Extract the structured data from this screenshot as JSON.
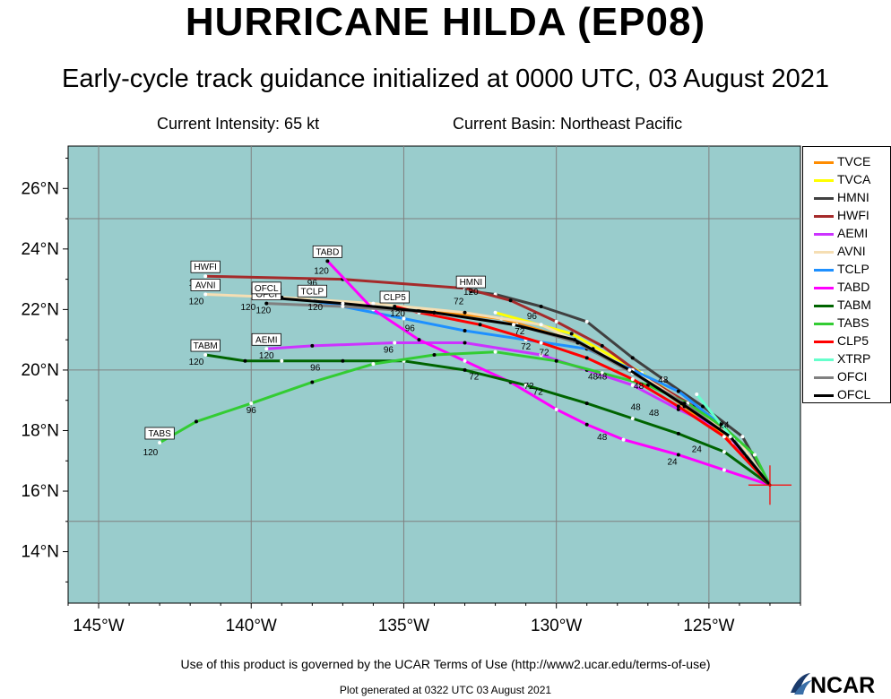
{
  "title": "HURRICANE HILDA (EP08)",
  "subtitle": "Early-cycle track guidance initialized at 0000 UTC, 03 August 2021",
  "current_intensity": "Current Intensity: 65 kt",
  "current_basin": "Current Basin: Northeast Pacific",
  "footer": "Use of this product is governed by the UCAR Terms of Use (http://www2.ucar.edu/terms-of-use)",
  "generated": "Plot generated at 0322 UTC   03 August 2021",
  "logo": "NCAR",
  "colors": {
    "ocean": "#99cccc",
    "grid": "#808080",
    "storm_marker": "#ff0000"
  },
  "chart_data": {
    "type": "line",
    "x_ticks": [
      "145°W",
      "140°W",
      "135°W",
      "130°W",
      "125°W"
    ],
    "y_ticks": [
      "14°N",
      "16°N",
      "18°N",
      "20°N",
      "22°N",
      "24°N",
      "26°N"
    ],
    "xlim": [
      -146,
      -122
    ],
    "ylim": [
      12.3,
      27.4
    ],
    "grid": true,
    "legend_position": "right",
    "storm_position": [
      -123.0,
      16.2
    ],
    "series": [
      {
        "name": "TVCE",
        "color": "#ff8c00",
        "label": "",
        "points": [
          [
            -123.0,
            16.2
          ],
          [
            -124.2,
            17.6
          ],
          [
            -125.8,
            18.8
          ],
          [
            -127.5,
            20.0
          ],
          [
            -129.5,
            21.0
          ],
          [
            -131.8,
            21.7
          ],
          [
            -134.5,
            22.0
          ]
        ],
        "taus": []
      },
      {
        "name": "TVCA",
        "color": "#ffff00",
        "label": "",
        "points": [
          [
            -123.0,
            16.2
          ],
          [
            -124.0,
            17.6
          ],
          [
            -125.6,
            18.8
          ],
          [
            -127.2,
            19.9
          ],
          [
            -129.5,
            21.2
          ],
          [
            -132.0,
            21.9
          ]
        ],
        "taus": []
      },
      {
        "name": "HMNI",
        "color": "#404040",
        "label": "HMNI",
        "points": [
          [
            -123.0,
            16.2
          ],
          [
            -123.9,
            17.8
          ],
          [
            -125.2,
            18.8
          ],
          [
            -126.5,
            19.7
          ],
          [
            -127.5,
            20.4
          ],
          [
            -129.0,
            21.6
          ],
          [
            -130.5,
            22.1
          ],
          [
            -132.0,
            22.5
          ],
          [
            -132.8,
            22.6
          ]
        ],
        "taus": [
          [
            -126.5,
            19.7,
            "48"
          ],
          [
            -130.8,
            21.8,
            "96"
          ],
          [
            -132.8,
            22.6,
            "120"
          ],
          [
            -133.2,
            22.3,
            "72"
          ]
        ]
      },
      {
        "name": "HWFI",
        "color": "#a52a2a",
        "label": "HWFI",
        "points": [
          [
            -123.0,
            16.2
          ],
          [
            -124.2,
            17.8
          ],
          [
            -125.5,
            18.8
          ],
          [
            -127.0,
            19.7
          ],
          [
            -128.5,
            20.8
          ],
          [
            -130.0,
            21.6
          ],
          [
            -131.5,
            22.3
          ],
          [
            -133.0,
            22.7
          ],
          [
            -137.0,
            23.0
          ],
          [
            -141.5,
            23.1
          ]
        ],
        "taus": [
          [
            -141.8,
            22.9,
            "120"
          ],
          [
            -138.0,
            22.9,
            "96"
          ]
        ]
      },
      {
        "name": "AEMI",
        "color": "#cc33ff",
        "label": "AEMI",
        "points": [
          [
            -123.0,
            16.2
          ],
          [
            -124.5,
            18.0
          ],
          [
            -126.0,
            18.7
          ],
          [
            -127.5,
            19.5
          ],
          [
            -129.0,
            20.0
          ],
          [
            -130.5,
            20.5
          ],
          [
            -133.0,
            20.9
          ],
          [
            -135.3,
            20.9
          ],
          [
            -138.0,
            20.8
          ],
          [
            -139.5,
            20.7
          ]
        ],
        "taus": [
          [
            -139.5,
            20.5,
            "120"
          ],
          [
            -135.5,
            20.7,
            "96"
          ],
          [
            -128.8,
            19.8,
            "48"
          ]
        ]
      },
      {
        "name": "AVNI",
        "color": "#f5deb3",
        "label": "AVNI",
        "points": [
          [
            -123.0,
            16.2
          ],
          [
            -124.0,
            17.6
          ],
          [
            -125.5,
            18.7
          ],
          [
            -127.2,
            19.8
          ],
          [
            -128.8,
            20.7
          ],
          [
            -130.5,
            21.5
          ],
          [
            -133.0,
            21.9
          ],
          [
            -136.0,
            22.2
          ],
          [
            -139.0,
            22.4
          ],
          [
            -141.5,
            22.5
          ]
        ],
        "taus": [
          [
            -141.8,
            22.3,
            "120"
          ]
        ]
      },
      {
        "name": "TCLP",
        "color": "#1e90ff",
        "label": "TCLP",
        "points": [
          [
            -123.0,
            16.2
          ],
          [
            -124.5,
            18.1
          ],
          [
            -126.0,
            19.3
          ],
          [
            -127.5,
            20.0
          ],
          [
            -129.0,
            20.7
          ],
          [
            -131.0,
            21.0
          ],
          [
            -133.0,
            21.3
          ],
          [
            -135.0,
            21.7
          ],
          [
            -137.0,
            22.1
          ],
          [
            -138.0,
            22.3
          ]
        ],
        "taus": [
          [
            -137.9,
            22.1,
            "120"
          ],
          [
            -131.0,
            20.8,
            "72"
          ],
          [
            -128.5,
            19.8,
            "48"
          ]
        ]
      },
      {
        "name": "TABD",
        "color": "#ff00ff",
        "label": "TABD",
        "points": [
          [
            -123.0,
            16.2
          ],
          [
            -124.5,
            16.7
          ],
          [
            -126.0,
            17.2
          ],
          [
            -127.8,
            17.7
          ],
          [
            -129.0,
            18.2
          ],
          [
            -130.0,
            18.7
          ],
          [
            -131.5,
            19.6
          ],
          [
            -133.0,
            20.3
          ],
          [
            -134.5,
            21.0
          ],
          [
            -136.0,
            22.0
          ],
          [
            -137.5,
            23.6
          ]
        ],
        "taus": [
          [
            -137.7,
            23.3,
            "120"
          ],
          [
            -126.2,
            17.0,
            "24"
          ],
          [
            -128.5,
            17.8,
            "48"
          ],
          [
            -130.6,
            19.3,
            "72"
          ]
        ]
      },
      {
        "name": "TABM",
        "color": "#006400",
        "label": "TABM",
        "points": [
          [
            -123.0,
            16.2
          ],
          [
            -124.5,
            17.3
          ],
          [
            -126.0,
            17.9
          ],
          [
            -127.5,
            18.4
          ],
          [
            -129.0,
            18.9
          ],
          [
            -131.0,
            19.5
          ],
          [
            -133.0,
            20.0
          ],
          [
            -135.0,
            20.3
          ],
          [
            -137.0,
            20.3
          ],
          [
            -139.0,
            20.3
          ],
          [
            -140.2,
            20.3
          ],
          [
            -141.5,
            20.5
          ]
        ],
        "taus": [
          [
            -141.8,
            20.3,
            "120"
          ],
          [
            -137.9,
            20.1,
            "96"
          ],
          [
            -132.7,
            19.8,
            "72"
          ],
          [
            -126.8,
            18.6,
            "48"
          ],
          [
            -125.4,
            17.4,
            "24"
          ]
        ]
      },
      {
        "name": "TABS",
        "color": "#33cc33",
        "label": "TABS",
        "points": [
          [
            -123.0,
            16.2
          ],
          [
            -123.5,
            17.2
          ],
          [
            -124.5,
            18.1
          ],
          [
            -125.7,
            18.9
          ],
          [
            -127.0,
            19.5
          ],
          [
            -128.5,
            19.9
          ],
          [
            -130.0,
            20.3
          ],
          [
            -132.0,
            20.6
          ],
          [
            -134.0,
            20.5
          ],
          [
            -136.0,
            20.2
          ],
          [
            -138.0,
            19.6
          ],
          [
            -140.0,
            18.9
          ],
          [
            -141.8,
            18.3
          ],
          [
            -143.0,
            17.6
          ]
        ],
        "taus": [
          [
            -143.3,
            17.3,
            "120"
          ],
          [
            -140.0,
            18.7,
            "96"
          ],
          [
            -130.9,
            19.5,
            "72"
          ],
          [
            -127.4,
            18.8,
            "48"
          ],
          [
            -124.5,
            18.2,
            "24"
          ]
        ]
      },
      {
        "name": "CLP5",
        "color": "#ff0000",
        "label": "CLP5",
        "points": [
          [
            -123.0,
            16.2
          ],
          [
            -124.5,
            17.8
          ],
          [
            -126.0,
            18.8
          ],
          [
            -127.5,
            19.7
          ],
          [
            -129.0,
            20.4
          ],
          [
            -130.5,
            20.9
          ],
          [
            -132.5,
            21.5
          ],
          [
            -134.5,
            21.9
          ],
          [
            -135.3,
            22.1
          ]
        ],
        "taus": [
          [
            -135.2,
            21.9,
            "120"
          ],
          [
            -130.4,
            20.6,
            "72"
          ],
          [
            -127.3,
            19.5,
            "48"
          ]
        ]
      },
      {
        "name": "XTRP",
        "color": "#66ffcc",
        "label": "",
        "points": [
          [
            -123.0,
            16.2
          ],
          [
            -123.8,
            17.2
          ],
          [
            -124.6,
            18.2
          ],
          [
            -125.4,
            19.2
          ]
        ],
        "taus": []
      },
      {
        "name": "OFCI",
        "color": "#808080",
        "label": "OFCI",
        "points": [
          [
            -123.0,
            16.2
          ],
          [
            -124.2,
            17.7
          ],
          [
            -125.8,
            18.9
          ],
          [
            -127.5,
            19.9
          ],
          [
            -129.3,
            20.9
          ],
          [
            -131.3,
            21.5
          ],
          [
            -134.0,
            21.9
          ],
          [
            -137.0,
            22.1
          ],
          [
            -139.5,
            22.2
          ]
        ],
        "taus": [
          [
            -139.6,
            22.0,
            "120"
          ],
          [
            -131.2,
            21.3,
            "72"
          ]
        ]
      },
      {
        "name": "OFCL",
        "color": "#000000",
        "label": "OFCL",
        "points": [
          [
            -123.0,
            16.2
          ],
          [
            -124.3,
            17.8
          ],
          [
            -125.9,
            18.9
          ],
          [
            -127.6,
            20.0
          ],
          [
            -129.4,
            21.0
          ],
          [
            -131.4,
            21.5
          ],
          [
            -134.0,
            21.9
          ],
          [
            -137.0,
            22.2
          ],
          [
            -139.5,
            22.4
          ]
        ],
        "taus": [
          [
            -140.1,
            22.1,
            "120"
          ],
          [
            -134.8,
            21.4,
            "96"
          ]
        ]
      }
    ]
  }
}
